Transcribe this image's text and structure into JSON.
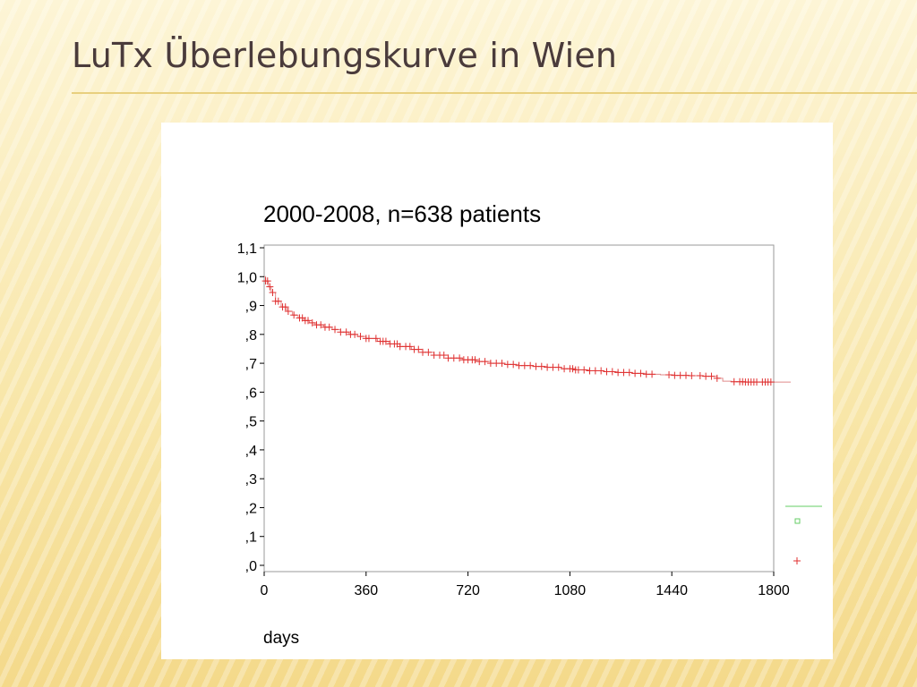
{
  "slide": {
    "title": "LuTx Überlebungskurve in Wien"
  },
  "chart_data": {
    "type": "line",
    "title": "2000-2008, n=638 patients",
    "xlabel": "days",
    "ylabel": "",
    "xlim": [
      0,
      1800
    ],
    "ylim": [
      0,
      1.1
    ],
    "x_ticks": [
      0,
      360,
      720,
      1080,
      1440,
      1800
    ],
    "x_tick_labels": [
      "0",
      "360",
      "720",
      "1080",
      "1440",
      "1800"
    ],
    "y_ticks": [
      0,
      0.1,
      0.2,
      0.3,
      0.4,
      0.5,
      0.6,
      0.7,
      0.8,
      0.9,
      1.0,
      1.1
    ],
    "y_tick_labels": [
      ",0",
      ",1",
      ",2",
      ",3",
      ",4",
      ",5",
      ",6",
      ",7",
      ",8",
      ",9",
      "1,0",
      "1,1"
    ],
    "grid": false,
    "colors": {
      "survival_line": "#e08a8a",
      "censor_marks": "#e03030",
      "legend_line": "#66cc66",
      "legend_square": "#66cc66",
      "legend_plus": "#e03030"
    },
    "series": [
      {
        "x": [
          0,
          5,
          15,
          25,
          40,
          60,
          80,
          100,
          120,
          140,
          160,
          180,
          210,
          240,
          270,
          300,
          330,
          360,
          400,
          440,
          480,
          520,
          560,
          600,
          650,
          700,
          750,
          800,
          850,
          900,
          950,
          1000,
          1050,
          1100,
          1150,
          1200,
          1250,
          1300,
          1350,
          1400,
          1450,
          1500,
          1550,
          1600,
          1620,
          1650,
          1700,
          1750,
          1800,
          1860
        ],
        "y": [
          1.0,
          0.985,
          0.965,
          0.945,
          0.915,
          0.895,
          0.88,
          0.867,
          0.857,
          0.848,
          0.84,
          0.833,
          0.825,
          0.817,
          0.808,
          0.8,
          0.793,
          0.786,
          0.776,
          0.767,
          0.758,
          0.748,
          0.738,
          0.728,
          0.718,
          0.712,
          0.706,
          0.7,
          0.696,
          0.692,
          0.689,
          0.686,
          0.681,
          0.677,
          0.674,
          0.671,
          0.668,
          0.665,
          0.662,
          0.66,
          0.658,
          0.657,
          0.655,
          0.648,
          0.638,
          0.636,
          0.635,
          0.635,
          0.635,
          0.635
        ]
      }
    ],
    "censored_x": [
      5,
      12,
      20,
      30,
      40,
      50,
      65,
      75,
      85,
      105,
      125,
      135,
      145,
      155,
      170,
      185,
      200,
      215,
      230,
      250,
      270,
      290,
      305,
      320,
      340,
      360,
      370,
      395,
      410,
      420,
      430,
      445,
      460,
      470,
      480,
      500,
      515,
      530,
      545,
      560,
      580,
      600,
      620,
      635,
      650,
      670,
      690,
      705,
      720,
      735,
      745,
      760,
      780,
      800,
      820,
      840,
      860,
      880,
      900,
      920,
      940,
      960,
      980,
      1000,
      1020,
      1040,
      1060,
      1080,
      1090,
      1100,
      1110,
      1130,
      1150,
      1170,
      1190,
      1210,
      1230,
      1250,
      1270,
      1290,
      1310,
      1330,
      1350,
      1370,
      1430,
      1450,
      1470,
      1490,
      1510,
      1540,
      1560,
      1580,
      1600,
      1660,
      1680,
      1690,
      1700,
      1710,
      1720,
      1730,
      1740,
      1760,
      1770,
      1780,
      1790
    ]
  }
}
